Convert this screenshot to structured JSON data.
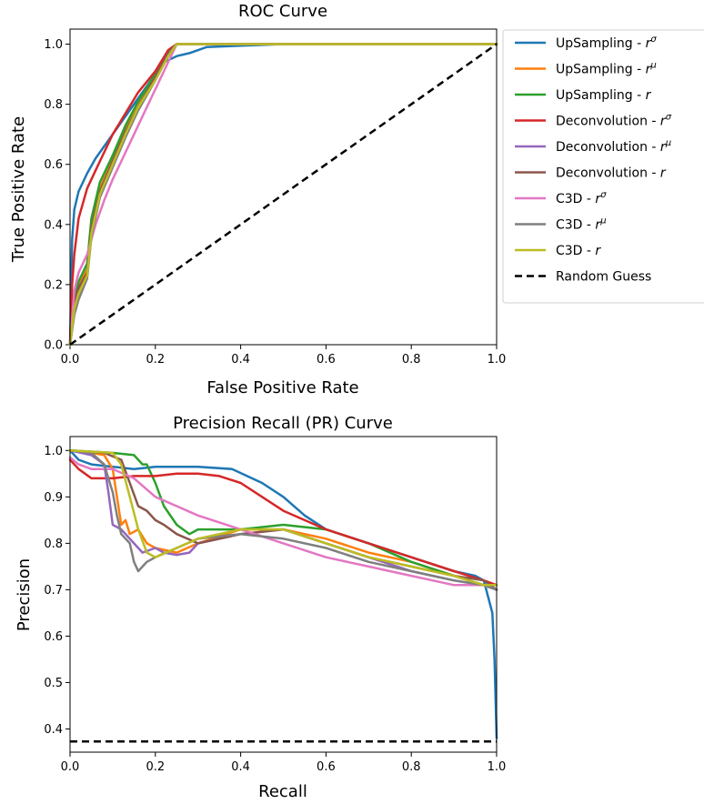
{
  "chart_data": [
    {
      "type": "line",
      "title": "ROC Curve",
      "xlabel": "False Positive Rate",
      "ylabel": "True Positive Rate",
      "xlim": [
        0,
        1
      ],
      "ylim": [
        0,
        1.05
      ],
      "xticks": [
        "0.0",
        "0.2",
        "0.4",
        "0.6",
        "0.8",
        "1.0"
      ],
      "yticks": [
        "0.0",
        "0.2",
        "0.4",
        "0.6",
        "0.8",
        "1.0"
      ],
      "grid": false,
      "legend_position": "outside-right",
      "series": [
        {
          "name": "UpSampling - r^σ",
          "color": "#1f77b4",
          "x": [
            0,
            0.005,
            0.01,
            0.02,
            0.04,
            0.06,
            0.08,
            0.1,
            0.12,
            0.15,
            0.18,
            0.2,
            0.22,
            0.25,
            0.28,
            0.32,
            0.4,
            0.5,
            0.7,
            1.0
          ],
          "y": [
            0,
            0.35,
            0.45,
            0.51,
            0.57,
            0.62,
            0.66,
            0.7,
            0.74,
            0.8,
            0.86,
            0.9,
            0.94,
            0.96,
            0.97,
            0.99,
            0.995,
            1.0,
            1.0,
            1.0
          ]
        },
        {
          "name": "UpSampling - r^μ",
          "color": "#ff7f0e",
          "x": [
            0,
            0.01,
            0.02,
            0.04,
            0.05,
            0.07,
            0.1,
            0.13,
            0.16,
            0.2,
            0.23,
            0.25,
            0.4,
            1.0
          ],
          "y": [
            0,
            0.15,
            0.2,
            0.25,
            0.4,
            0.52,
            0.62,
            0.72,
            0.8,
            0.9,
            0.98,
            1.0,
            1.0,
            1.0
          ]
        },
        {
          "name": "UpSampling - r",
          "color": "#2ca02c",
          "x": [
            0,
            0.01,
            0.02,
            0.04,
            0.05,
            0.07,
            0.1,
            0.13,
            0.16,
            0.2,
            0.23,
            0.25,
            0.4,
            1.0
          ],
          "y": [
            0,
            0.16,
            0.21,
            0.27,
            0.42,
            0.54,
            0.63,
            0.73,
            0.81,
            0.9,
            0.97,
            1.0,
            1.0,
            1.0
          ]
        },
        {
          "name": "Deconvolution - r^σ",
          "color": "#d62728",
          "x": [
            0,
            0.005,
            0.01,
            0.02,
            0.04,
            0.06,
            0.08,
            0.1,
            0.13,
            0.16,
            0.2,
            0.23,
            0.25,
            0.4,
            1.0
          ],
          "y": [
            0,
            0.2,
            0.3,
            0.42,
            0.52,
            0.58,
            0.64,
            0.7,
            0.77,
            0.84,
            0.91,
            0.98,
            1.0,
            1.0,
            1.0
          ]
        },
        {
          "name": "Deconvolution - r^μ",
          "color": "#9467bd",
          "x": [
            0,
            0.01,
            0.02,
            0.04,
            0.05,
            0.07,
            0.1,
            0.13,
            0.16,
            0.2,
            0.23,
            0.25,
            0.4,
            1.0
          ],
          "y": [
            0,
            0.13,
            0.18,
            0.24,
            0.38,
            0.5,
            0.6,
            0.7,
            0.79,
            0.89,
            0.97,
            1.0,
            1.0,
            1.0
          ]
        },
        {
          "name": "Deconvolution - r",
          "color": "#8c564b",
          "x": [
            0,
            0.01,
            0.02,
            0.04,
            0.05,
            0.07,
            0.1,
            0.13,
            0.16,
            0.2,
            0.23,
            0.25,
            0.4,
            1.0
          ],
          "y": [
            0,
            0.14,
            0.19,
            0.24,
            0.39,
            0.51,
            0.61,
            0.71,
            0.79,
            0.89,
            0.97,
            1.0,
            1.0,
            1.0
          ]
        },
        {
          "name": "C3D - r^σ",
          "color": "#e377c2",
          "x": [
            0,
            0.01,
            0.02,
            0.04,
            0.06,
            0.08,
            0.1,
            0.13,
            0.16,
            0.19,
            0.22,
            0.24,
            0.25,
            0.4,
            1.0
          ],
          "y": [
            0,
            0.18,
            0.24,
            0.3,
            0.4,
            0.48,
            0.55,
            0.64,
            0.73,
            0.82,
            0.91,
            0.97,
            1.0,
            1.0,
            1.0
          ]
        },
        {
          "name": "C3D - r^μ",
          "color": "#7f7f7f",
          "x": [
            0,
            0.01,
            0.02,
            0.04,
            0.05,
            0.07,
            0.1,
            0.13,
            0.16,
            0.2,
            0.23,
            0.25,
            0.4,
            1.0
          ],
          "y": [
            0,
            0.1,
            0.15,
            0.22,
            0.36,
            0.49,
            0.59,
            0.69,
            0.78,
            0.88,
            0.96,
            1.0,
            1.0,
            1.0
          ]
        },
        {
          "name": "C3D - r",
          "color": "#bcbd22",
          "x": [
            0,
            0.01,
            0.02,
            0.04,
            0.05,
            0.07,
            0.1,
            0.13,
            0.16,
            0.2,
            0.23,
            0.25,
            0.4,
            1.0
          ],
          "y": [
            0,
            0.12,
            0.17,
            0.23,
            0.37,
            0.5,
            0.6,
            0.7,
            0.79,
            0.88,
            0.96,
            1.0,
            1.0,
            1.0
          ]
        },
        {
          "name": "Random Guess",
          "color": "#000000",
          "dashed": true,
          "x": [
            0,
            1
          ],
          "y": [
            0,
            1
          ]
        }
      ]
    },
    {
      "type": "line",
      "title": "Precision Recall (PR) Curve",
      "xlabel": "Recall",
      "ylabel": "Precision",
      "xlim": [
        0,
        1
      ],
      "ylim": [
        0.35,
        1.03
      ],
      "xticks": [
        "0.0",
        "0.2",
        "0.4",
        "0.6",
        "0.8",
        "1.0"
      ],
      "yticks": [
        "0.4",
        "0.5",
        "0.6",
        "0.7",
        "0.8",
        "0.9",
        "1.0"
      ],
      "grid": false,
      "series": [
        {
          "name": "UpSampling - r^σ",
          "color": "#1f77b4",
          "x": [
            0,
            0.02,
            0.05,
            0.1,
            0.15,
            0.2,
            0.25,
            0.3,
            0.38,
            0.45,
            0.5,
            0.55,
            0.6,
            0.7,
            0.8,
            0.9,
            0.95,
            0.97,
            0.99,
            0.995,
            1.0
          ],
          "y": [
            1.0,
            0.98,
            0.97,
            0.965,
            0.96,
            0.965,
            0.965,
            0.965,
            0.96,
            0.93,
            0.9,
            0.86,
            0.83,
            0.8,
            0.77,
            0.74,
            0.73,
            0.72,
            0.65,
            0.55,
            0.38
          ]
        },
        {
          "name": "UpSampling - r^μ",
          "color": "#ff7f0e",
          "x": [
            0,
            0.05,
            0.08,
            0.1,
            0.11,
            0.12,
            0.13,
            0.14,
            0.16,
            0.18,
            0.2,
            0.25,
            0.3,
            0.4,
            0.5,
            0.6,
            0.7,
            0.8,
            0.9,
            0.97,
            1.0
          ],
          "y": [
            1.0,
            0.995,
            0.99,
            0.96,
            0.9,
            0.84,
            0.85,
            0.82,
            0.83,
            0.8,
            0.79,
            0.78,
            0.8,
            0.83,
            0.83,
            0.81,
            0.78,
            0.76,
            0.73,
            0.71,
            0.7
          ]
        },
        {
          "name": "UpSampling - r",
          "color": "#2ca02c",
          "x": [
            0,
            0.1,
            0.15,
            0.17,
            0.18,
            0.2,
            0.22,
            0.25,
            0.28,
            0.3,
            0.4,
            0.5,
            0.6,
            0.7,
            0.8,
            0.9,
            0.97,
            1.0
          ],
          "y": [
            1.0,
            0.995,
            0.99,
            0.97,
            0.97,
            0.93,
            0.88,
            0.84,
            0.82,
            0.83,
            0.83,
            0.84,
            0.83,
            0.8,
            0.76,
            0.73,
            0.71,
            0.7
          ]
        },
        {
          "name": "Deconvolution - r^σ",
          "color": "#d62728",
          "x": [
            0,
            0.02,
            0.05,
            0.1,
            0.15,
            0.2,
            0.25,
            0.3,
            0.35,
            0.4,
            0.45,
            0.5,
            0.6,
            0.7,
            0.8,
            0.9,
            0.97,
            1.0
          ],
          "y": [
            0.98,
            0.96,
            0.94,
            0.94,
            0.945,
            0.945,
            0.95,
            0.95,
            0.945,
            0.93,
            0.9,
            0.87,
            0.83,
            0.8,
            0.77,
            0.74,
            0.72,
            0.71
          ]
        },
        {
          "name": "Deconvolution - r^μ",
          "color": "#9467bd",
          "x": [
            0,
            0.05,
            0.08,
            0.09,
            0.1,
            0.12,
            0.15,
            0.17,
            0.2,
            0.22,
            0.25,
            0.28,
            0.3,
            0.4,
            0.5,
            0.6,
            0.7,
            0.8,
            0.9,
            0.97,
            1.0
          ],
          "y": [
            1.0,
            0.99,
            0.97,
            0.91,
            0.84,
            0.83,
            0.8,
            0.78,
            0.79,
            0.78,
            0.775,
            0.78,
            0.8,
            0.82,
            0.83,
            0.8,
            0.77,
            0.74,
            0.72,
            0.71,
            0.7
          ]
        },
        {
          "name": "Deconvolution - r",
          "color": "#8c564b",
          "x": [
            0,
            0.08,
            0.12,
            0.14,
            0.16,
            0.18,
            0.2,
            0.22,
            0.25,
            0.3,
            0.4,
            0.5,
            0.6,
            0.7,
            0.8,
            0.9,
            0.97,
            1.0
          ],
          "y": [
            1.0,
            0.995,
            0.98,
            0.93,
            0.88,
            0.87,
            0.85,
            0.84,
            0.82,
            0.8,
            0.82,
            0.83,
            0.8,
            0.77,
            0.75,
            0.73,
            0.72,
            0.7
          ]
        },
        {
          "name": "C3D - r^σ",
          "color": "#e377c2",
          "x": [
            0,
            0.02,
            0.05,
            0.1,
            0.15,
            0.2,
            0.25,
            0.3,
            0.4,
            0.5,
            0.6,
            0.7,
            0.8,
            0.9,
            0.97,
            1.0
          ],
          "y": [
            0.985,
            0.97,
            0.96,
            0.96,
            0.94,
            0.9,
            0.88,
            0.86,
            0.83,
            0.8,
            0.77,
            0.75,
            0.73,
            0.71,
            0.71,
            0.7
          ]
        },
        {
          "name": "C3D - r^μ",
          "color": "#7f7f7f",
          "x": [
            0,
            0.05,
            0.08,
            0.1,
            0.11,
            0.12,
            0.14,
            0.15,
            0.16,
            0.18,
            0.2,
            0.25,
            0.3,
            0.4,
            0.5,
            0.6,
            0.7,
            0.8,
            0.9,
            0.97,
            1.0
          ],
          "y": [
            1.0,
            0.995,
            0.97,
            0.91,
            0.86,
            0.82,
            0.8,
            0.76,
            0.74,
            0.76,
            0.77,
            0.79,
            0.81,
            0.82,
            0.81,
            0.79,
            0.76,
            0.74,
            0.72,
            0.71,
            0.7
          ]
        },
        {
          "name": "C3D - r",
          "color": "#bcbd22",
          "x": [
            0,
            0.1,
            0.12,
            0.14,
            0.16,
            0.18,
            0.2,
            0.25,
            0.3,
            0.4,
            0.5,
            0.6,
            0.7,
            0.8,
            0.9,
            0.97,
            1.0
          ],
          "y": [
            1.0,
            0.995,
            0.97,
            0.9,
            0.83,
            0.78,
            0.77,
            0.79,
            0.81,
            0.83,
            0.83,
            0.8,
            0.77,
            0.75,
            0.73,
            0.71,
            0.71
          ]
        },
        {
          "name": "Random Guess",
          "color": "#000000",
          "dashed": true,
          "x": [
            0,
            1
          ],
          "y": [
            0.373,
            0.373
          ]
        }
      ]
    }
  ]
}
